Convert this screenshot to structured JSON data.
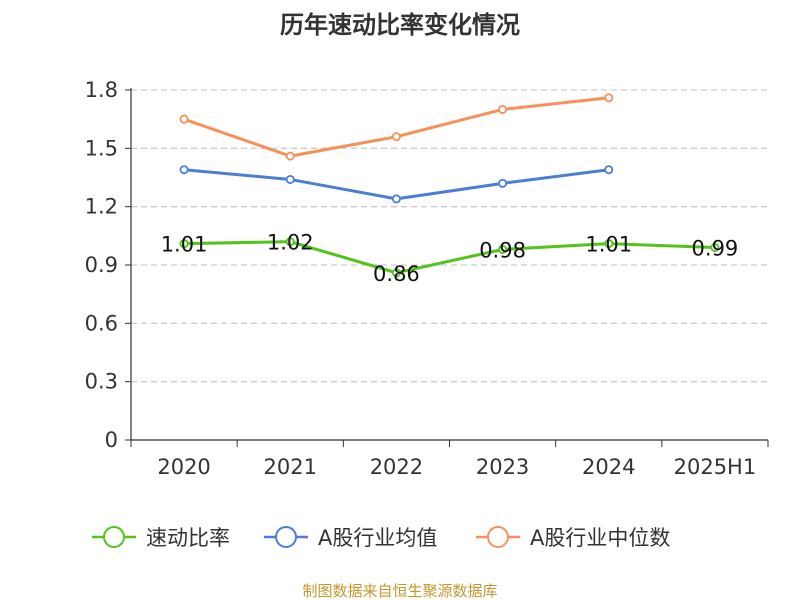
{
  "chart_data": {
    "type": "line",
    "title": "历年速动比率变化情况",
    "source": "制图数据来自恒生聚源数据库",
    "categories": [
      "2020",
      "2021",
      "2022",
      "2023",
      "2024",
      "2025H1"
    ],
    "yticks": [
      "0",
      "0.3",
      "0.6",
      "0.9",
      "1.2",
      "1.5",
      "1.8"
    ],
    "ylim": [
      0,
      1.8
    ],
    "grid": true,
    "legend_position": "bottom",
    "xlabel": "",
    "ylabel": "",
    "series": [
      {
        "name": "速动比率",
        "color": "#52c41a",
        "values": [
          1.01,
          1.02,
          0.86,
          0.98,
          1.01,
          0.99
        ],
        "labels": [
          "1.01",
          "1.02",
          "0.86",
          "0.98",
          "1.01",
          "0.99"
        ]
      },
      {
        "name": "A股行业均值",
        "color": "#4a7fd4",
        "values": [
          1.39,
          1.34,
          1.24,
          1.32,
          1.39,
          null
        ]
      },
      {
        "name": "A股行业中位数",
        "color": "#f7905a",
        "values": [
          1.65,
          1.46,
          1.56,
          1.7,
          1.76,
          null
        ]
      }
    ]
  }
}
